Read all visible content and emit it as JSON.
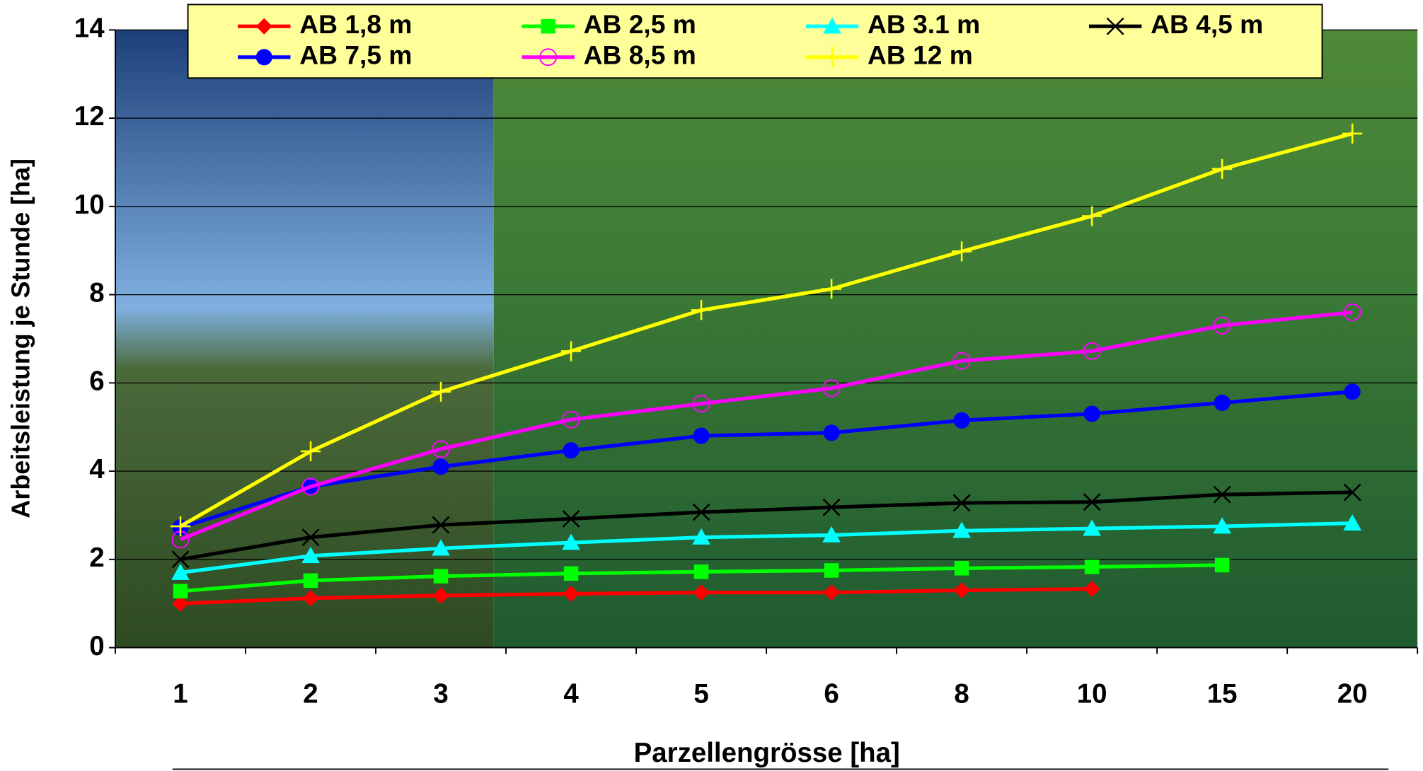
{
  "chart_data": {
    "type": "line",
    "x_label": "Parzellengrösse [ha]",
    "y_label": "Arbeitsleistung je Stunde [ha]",
    "categories": [
      "1",
      "2",
      "3",
      "4",
      "5",
      "6",
      "8",
      "10",
      "15",
      "20"
    ],
    "ylim": [
      0,
      14
    ],
    "yticks": [
      0,
      2,
      4,
      6,
      8,
      10,
      12,
      14
    ],
    "grid": true,
    "legend": "top",
    "series": [
      {
        "name": "AB 1,8 m",
        "color": "#ff0000",
        "marker": "diamond",
        "values": [
          1.0,
          1.12,
          1.18,
          1.22,
          1.25,
          1.25,
          1.3,
          1.33,
          null,
          null
        ]
      },
      {
        "name": "AB 2,5 m",
        "color": "#00ff00",
        "marker": "square",
        "values": [
          1.28,
          1.52,
          1.62,
          1.68,
          1.72,
          1.75,
          1.8,
          1.83,
          1.87,
          null
        ]
      },
      {
        "name": "AB 3.1 m",
        "color": "#00ffff",
        "marker": "triangle",
        "values": [
          1.7,
          2.08,
          2.25,
          2.38,
          2.5,
          2.55,
          2.65,
          2.7,
          2.75,
          2.82
        ]
      },
      {
        "name": "AB 4,5 m",
        "color": "#000000",
        "marker": "x",
        "values": [
          2.0,
          2.5,
          2.78,
          2.92,
          3.07,
          3.18,
          3.28,
          3.3,
          3.47,
          3.52
        ]
      },
      {
        "name": "AB 7,5 m",
        "color": "#0000ff",
        "marker": "circle",
        "values": [
          2.72,
          3.65,
          4.1,
          4.47,
          4.8,
          4.87,
          5.15,
          5.3,
          5.55,
          5.8
        ]
      },
      {
        "name": "AB 8,5 m",
        "color": "#ff00ff",
        "marker": "open-circle",
        "values": [
          2.45,
          3.65,
          4.5,
          5.17,
          5.53,
          5.88,
          6.5,
          6.72,
          7.3,
          7.6
        ]
      },
      {
        "name": "AB 12 m",
        "color": "#ffff00",
        "marker": "plus",
        "values": [
          2.75,
          4.45,
          5.8,
          6.72,
          7.65,
          8.13,
          8.98,
          9.78,
          10.85,
          11.65
        ]
      }
    ]
  }
}
